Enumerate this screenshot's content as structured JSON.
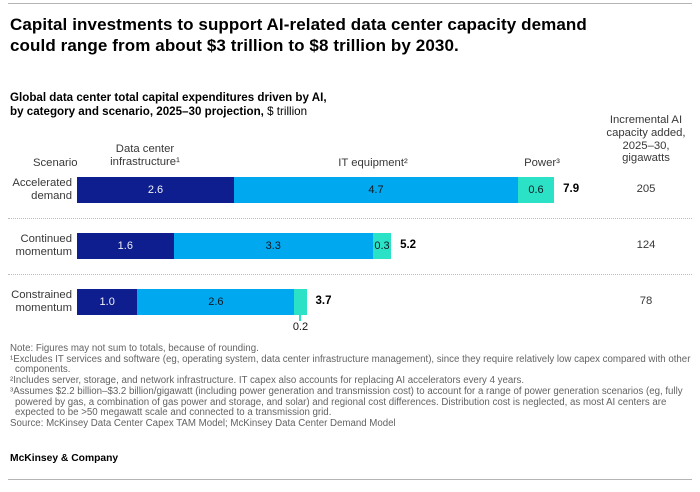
{
  "header": {
    "title": "Capital investments to support AI-related data center capacity demand\ncould range from about $3 trillion to $8 trillion by 2030."
  },
  "subtitle": {
    "bold": "Global data center total capital expenditures driven by AI,\nby category and scenario, 2025–30 projection,",
    "unit": " $ trillion"
  },
  "columns": {
    "scenario": "Scenario",
    "infrastructure": "Data center\ninfrastructure¹",
    "it_equipment": "IT equipment²",
    "power": "Power³",
    "gigawatts": "Incremental AI\ncapacity added,\n2025–30,\ngigawatts"
  },
  "chart_data": {
    "type": "bar",
    "orientation": "horizontal",
    "stacked": true,
    "title": "Global data center total capital expenditures driven by AI, by category and scenario, 2025–30 projection",
    "unit": "$ trillion",
    "xlim": [
      0,
      7.9
    ],
    "grid": false,
    "categories": [
      "Accelerated\ndemand",
      "Continued\nmomentum",
      "Constrained\nmomentum"
    ],
    "series": [
      {
        "key": "infrastructure",
        "name": "Data center infrastructure",
        "color": "#0e1e8e",
        "label_color": "#eef1f8",
        "values": [
          2.6,
          1.6,
          1.0
        ]
      },
      {
        "key": "it-equipment",
        "name": "IT equipment",
        "color": "#00a8f0",
        "label_color": "#101820",
        "values": [
          4.7,
          3.3,
          2.6
        ]
      },
      {
        "key": "power",
        "name": "Power",
        "color": "#2be2c6",
        "label_color": "#101820",
        "values": [
          0.6,
          0.3,
          0.2
        ]
      }
    ],
    "totals": [
      7.9,
      5.2,
      3.7
    ],
    "gigawatts": [
      205,
      124,
      78
    ]
  },
  "footnotes": {
    "lines": [
      "Note: Figures may not sum to totals, because of rounding.",
      "¹Excludes IT services and software (eg, operating system, data center infrastructure management), since they require relatively low capex compared with other components.",
      "²Includes server, storage, and network infrastructure. IT capex also accounts for replacing AI accelerators every 4 years.",
      "³Assumes $2.2 billion–$3.2 billion/gigawatt (including power generation and transmission cost) to account for a range of power generation scenarios (eg, fully powered by gas, a combination of gas power and storage, and solar) and regional cost differences. Distribution cost is neglected, as most AI centers are expected to be >50 megawatt scale and connected to a transmission grid.",
      "Source: McKinsey Data Center Capex TAM Model; McKinsey Data Center Demand Model"
    ]
  },
  "footer": {
    "brand": "McKinsey & Company"
  }
}
